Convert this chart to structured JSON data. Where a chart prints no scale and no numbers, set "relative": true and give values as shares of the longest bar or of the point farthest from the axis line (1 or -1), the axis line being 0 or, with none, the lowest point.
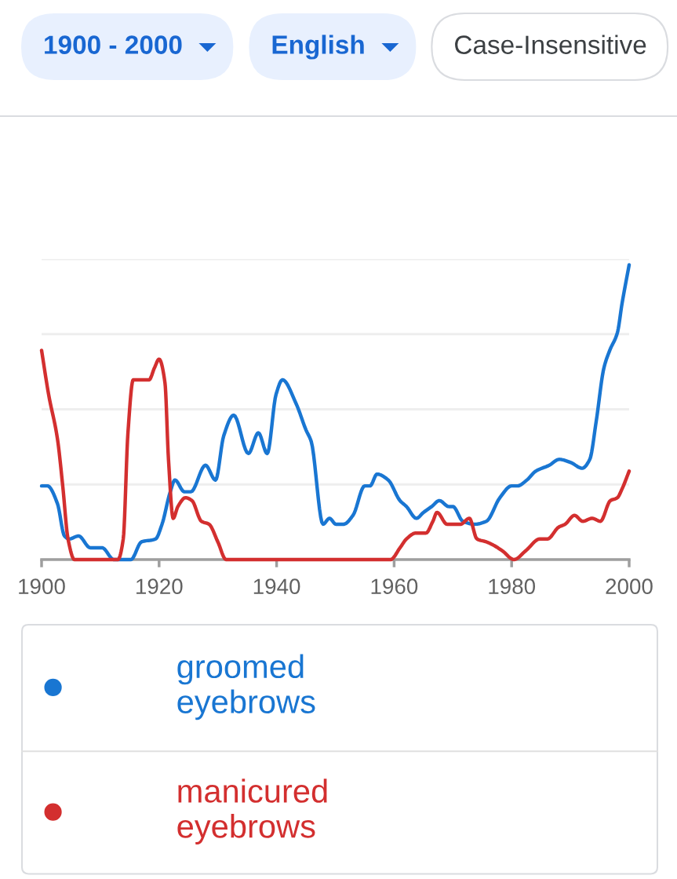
{
  "chart_data": {
    "type": "line",
    "relative": true,
    "annotations": [
      "1900 - 2000",
      "English",
      "Case-Insensitive"
    ],
    "xlim": [
      1900,
      2000
    ],
    "xticks": [
      1900,
      1920,
      1940,
      1960,
      1980,
      2000
    ],
    "grid": "y",
    "legend": "bottom",
    "series": [
      {
        "name": "groomed eyebrows",
        "color": "#1976d2",
        "x": [
          1900,
          1901,
          1902.7,
          1903.9,
          1904.7,
          1906.3,
          1908.3,
          1910.3,
          1912.3,
          1915.2,
          1917,
          1919.4,
          1920.5,
          1921.9,
          1922.7,
          1924.3,
          1925.4,
          1927.9,
          1929.6,
          1931,
          1932.7,
          1935.2,
          1936.9,
          1938.4,
          1939.9,
          1941,
          1943.3,
          1945,
          1945.9,
          1947.9,
          1949,
          1950.1,
          1951.4,
          1953,
          1955,
          1955.9,
          1957.1,
          1959,
          1961,
          1962.1,
          1963.8,
          1965,
          1966.4,
          1967.7,
          1969.3,
          1970,
          1971.7,
          1973.7,
          1975.7,
          1978,
          1980,
          1981,
          1982.6,
          1984.1,
          1986.4,
          1988.1,
          1990,
          1992,
          1993.3,
          1994.4,
          1995.7,
          1996.7,
          1998,
          1998.8,
          2000
        ],
        "values": [
          0.25,
          0.25,
          0.19,
          0.08,
          0.07,
          0.08,
          0.04,
          0.04,
          0,
          0,
          0.06,
          0.07,
          0.12,
          0.23,
          0.27,
          0.23,
          0.23,
          0.32,
          0.27,
          0.42,
          0.49,
          0.36,
          0.43,
          0.36,
          0.56,
          0.61,
          0.53,
          0.44,
          0.4,
          0.12,
          0.14,
          0.12,
          0.12,
          0.15,
          0.25,
          0.25,
          0.29,
          0.27,
          0.2,
          0.18,
          0.14,
          0.16,
          0.18,
          0.2,
          0.18,
          0.18,
          0.13,
          0.12,
          0.13,
          0.21,
          0.25,
          0.25,
          0.27,
          0.3,
          0.32,
          0.34,
          0.33,
          0.31,
          0.34,
          0.47,
          0.65,
          0.71,
          0.77,
          0.87,
          1
        ]
      },
      {
        "name": "manicured eyebrows",
        "color": "#d32f2f",
        "x": [
          1900,
          1901.2,
          1902.7,
          1903.6,
          1904.5,
          1905.6,
          1913,
          1913.9,
          1914.7,
          1915.6,
          1918.3,
          1919.2,
          1920,
          1921,
          1921.6,
          1922.4,
          1923.2,
          1924.5,
          1925.6,
          1927.2,
          1928.5,
          1930,
          1931.4,
          1959.4,
          1961,
          1962.1,
          1963.7,
          1965.4,
          1966.6,
          1967.3,
          1969,
          1971.3,
          1972.8,
          1974.1,
          1975.7,
          1976.8,
          1978.4,
          1980.4,
          1982.4,
          1984.8,
          1986.1,
          1988,
          1989.1,
          1990.7,
          1992.1,
          1993.7,
          1995.1,
          1996.8,
          1998,
          1998.8,
          2000
        ],
        "values": [
          0.71,
          0.56,
          0.41,
          0.25,
          0.07,
          0,
          0,
          0.07,
          0.43,
          0.61,
          0.61,
          0.65,
          0.68,
          0.6,
          0.34,
          0.14,
          0.18,
          0.21,
          0.2,
          0.13,
          0.12,
          0.06,
          0,
          0,
          0.04,
          0.07,
          0.09,
          0.09,
          0.13,
          0.16,
          0.12,
          0.12,
          0.14,
          0.07,
          0.06,
          0.05,
          0.03,
          0,
          0.03,
          0.07,
          0.07,
          0.11,
          0.12,
          0.15,
          0.13,
          0.14,
          0.13,
          0.2,
          0.21,
          0.24,
          0.3
        ]
      }
    ]
  }
}
